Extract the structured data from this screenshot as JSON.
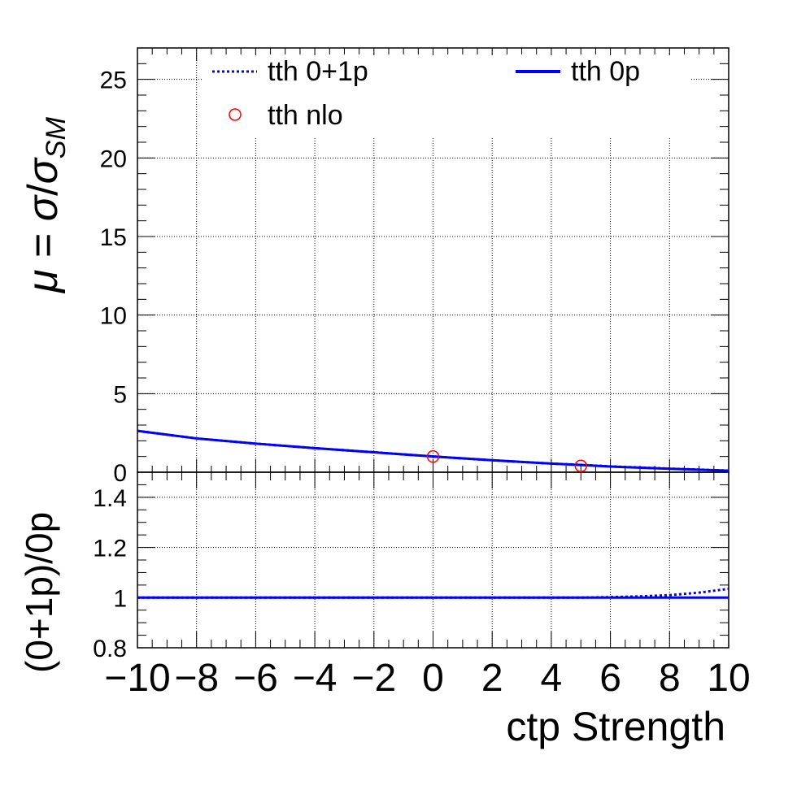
{
  "chart_data": [
    {
      "panel": "top",
      "type": "line",
      "ylabel": "μ = σ/σ_SM",
      "ylabel_parts": {
        "mu": "μ",
        "eq": " = ",
        "sigma": "σ",
        "slash": "/",
        "sigma2": "σ",
        "sub": "SM"
      },
      "xlim": [
        -10,
        10
      ],
      "ylim": [
        0,
        27
      ],
      "y_ticks": [
        0,
        5,
        10,
        15,
        20,
        25
      ],
      "y_tick_labels": [
        "0",
        "5",
        "10",
        "15",
        "20",
        "25"
      ],
      "x_ticks": [
        -10,
        -8,
        -6,
        -4,
        -2,
        0,
        2,
        4,
        6,
        8,
        10
      ],
      "grid": true,
      "legend_placement": "top",
      "series": [
        {
          "name": "tth 0+1p",
          "style": "dotted",
          "color": "#0000ff",
          "x": [
            -10,
            -8,
            -6,
            -4,
            -2,
            0,
            2,
            4,
            5,
            6,
            8,
            10
          ],
          "y": [
            2.63,
            2.15,
            1.82,
            1.53,
            1.27,
            1.0,
            0.76,
            0.55,
            0.47,
            0.37,
            0.23,
            0.1
          ]
        },
        {
          "name": "tth 0p",
          "style": "solid",
          "color": "#0000ff",
          "x": [
            -10,
            -8,
            -6,
            -4,
            -2,
            0,
            2,
            4,
            5,
            6,
            8,
            10
          ],
          "y": [
            2.63,
            2.15,
            1.82,
            1.53,
            1.27,
            1.0,
            0.76,
            0.55,
            0.46,
            0.36,
            0.22,
            0.1
          ]
        },
        {
          "name": "tth nlo",
          "style": "marker-open-circle",
          "color": "#ff0000",
          "x": [
            0,
            5
          ],
          "y": [
            1.0,
            0.4
          ]
        }
      ]
    },
    {
      "panel": "bottom",
      "type": "line",
      "xlabel": "ctp Strength",
      "ylabel": "(0+1p)/0p",
      "xlim": [
        -10,
        10
      ],
      "ylim": [
        0.8,
        1.5
      ],
      "y_ticks": [
        0.8,
        1.0,
        1.2,
        1.4
      ],
      "y_tick_labels": [
        "0.8",
        "1",
        "1.2",
        "1.4"
      ],
      "x_ticks": [
        -10,
        -8,
        -6,
        -4,
        -2,
        0,
        2,
        4,
        6,
        8,
        10
      ],
      "x_tick_labels": [
        "−10",
        "−8",
        "−6",
        "−4",
        "−2",
        "0",
        "2",
        "4",
        "6",
        "8",
        "10"
      ],
      "grid": true,
      "series": [
        {
          "style": "dotted",
          "color": "#0000ff",
          "x": [
            -10,
            -4,
            0,
            4,
            5,
            6,
            7,
            8,
            9,
            10
          ],
          "y": [
            1.0,
            1.0,
            1.0,
            1.0,
            1.0,
            1.002,
            1.005,
            1.01,
            1.02,
            1.035
          ]
        },
        {
          "style": "solid",
          "color": "#0000ff",
          "x": [
            -10,
            10
          ],
          "y": [
            1.0,
            1.0
          ]
        }
      ]
    }
  ]
}
